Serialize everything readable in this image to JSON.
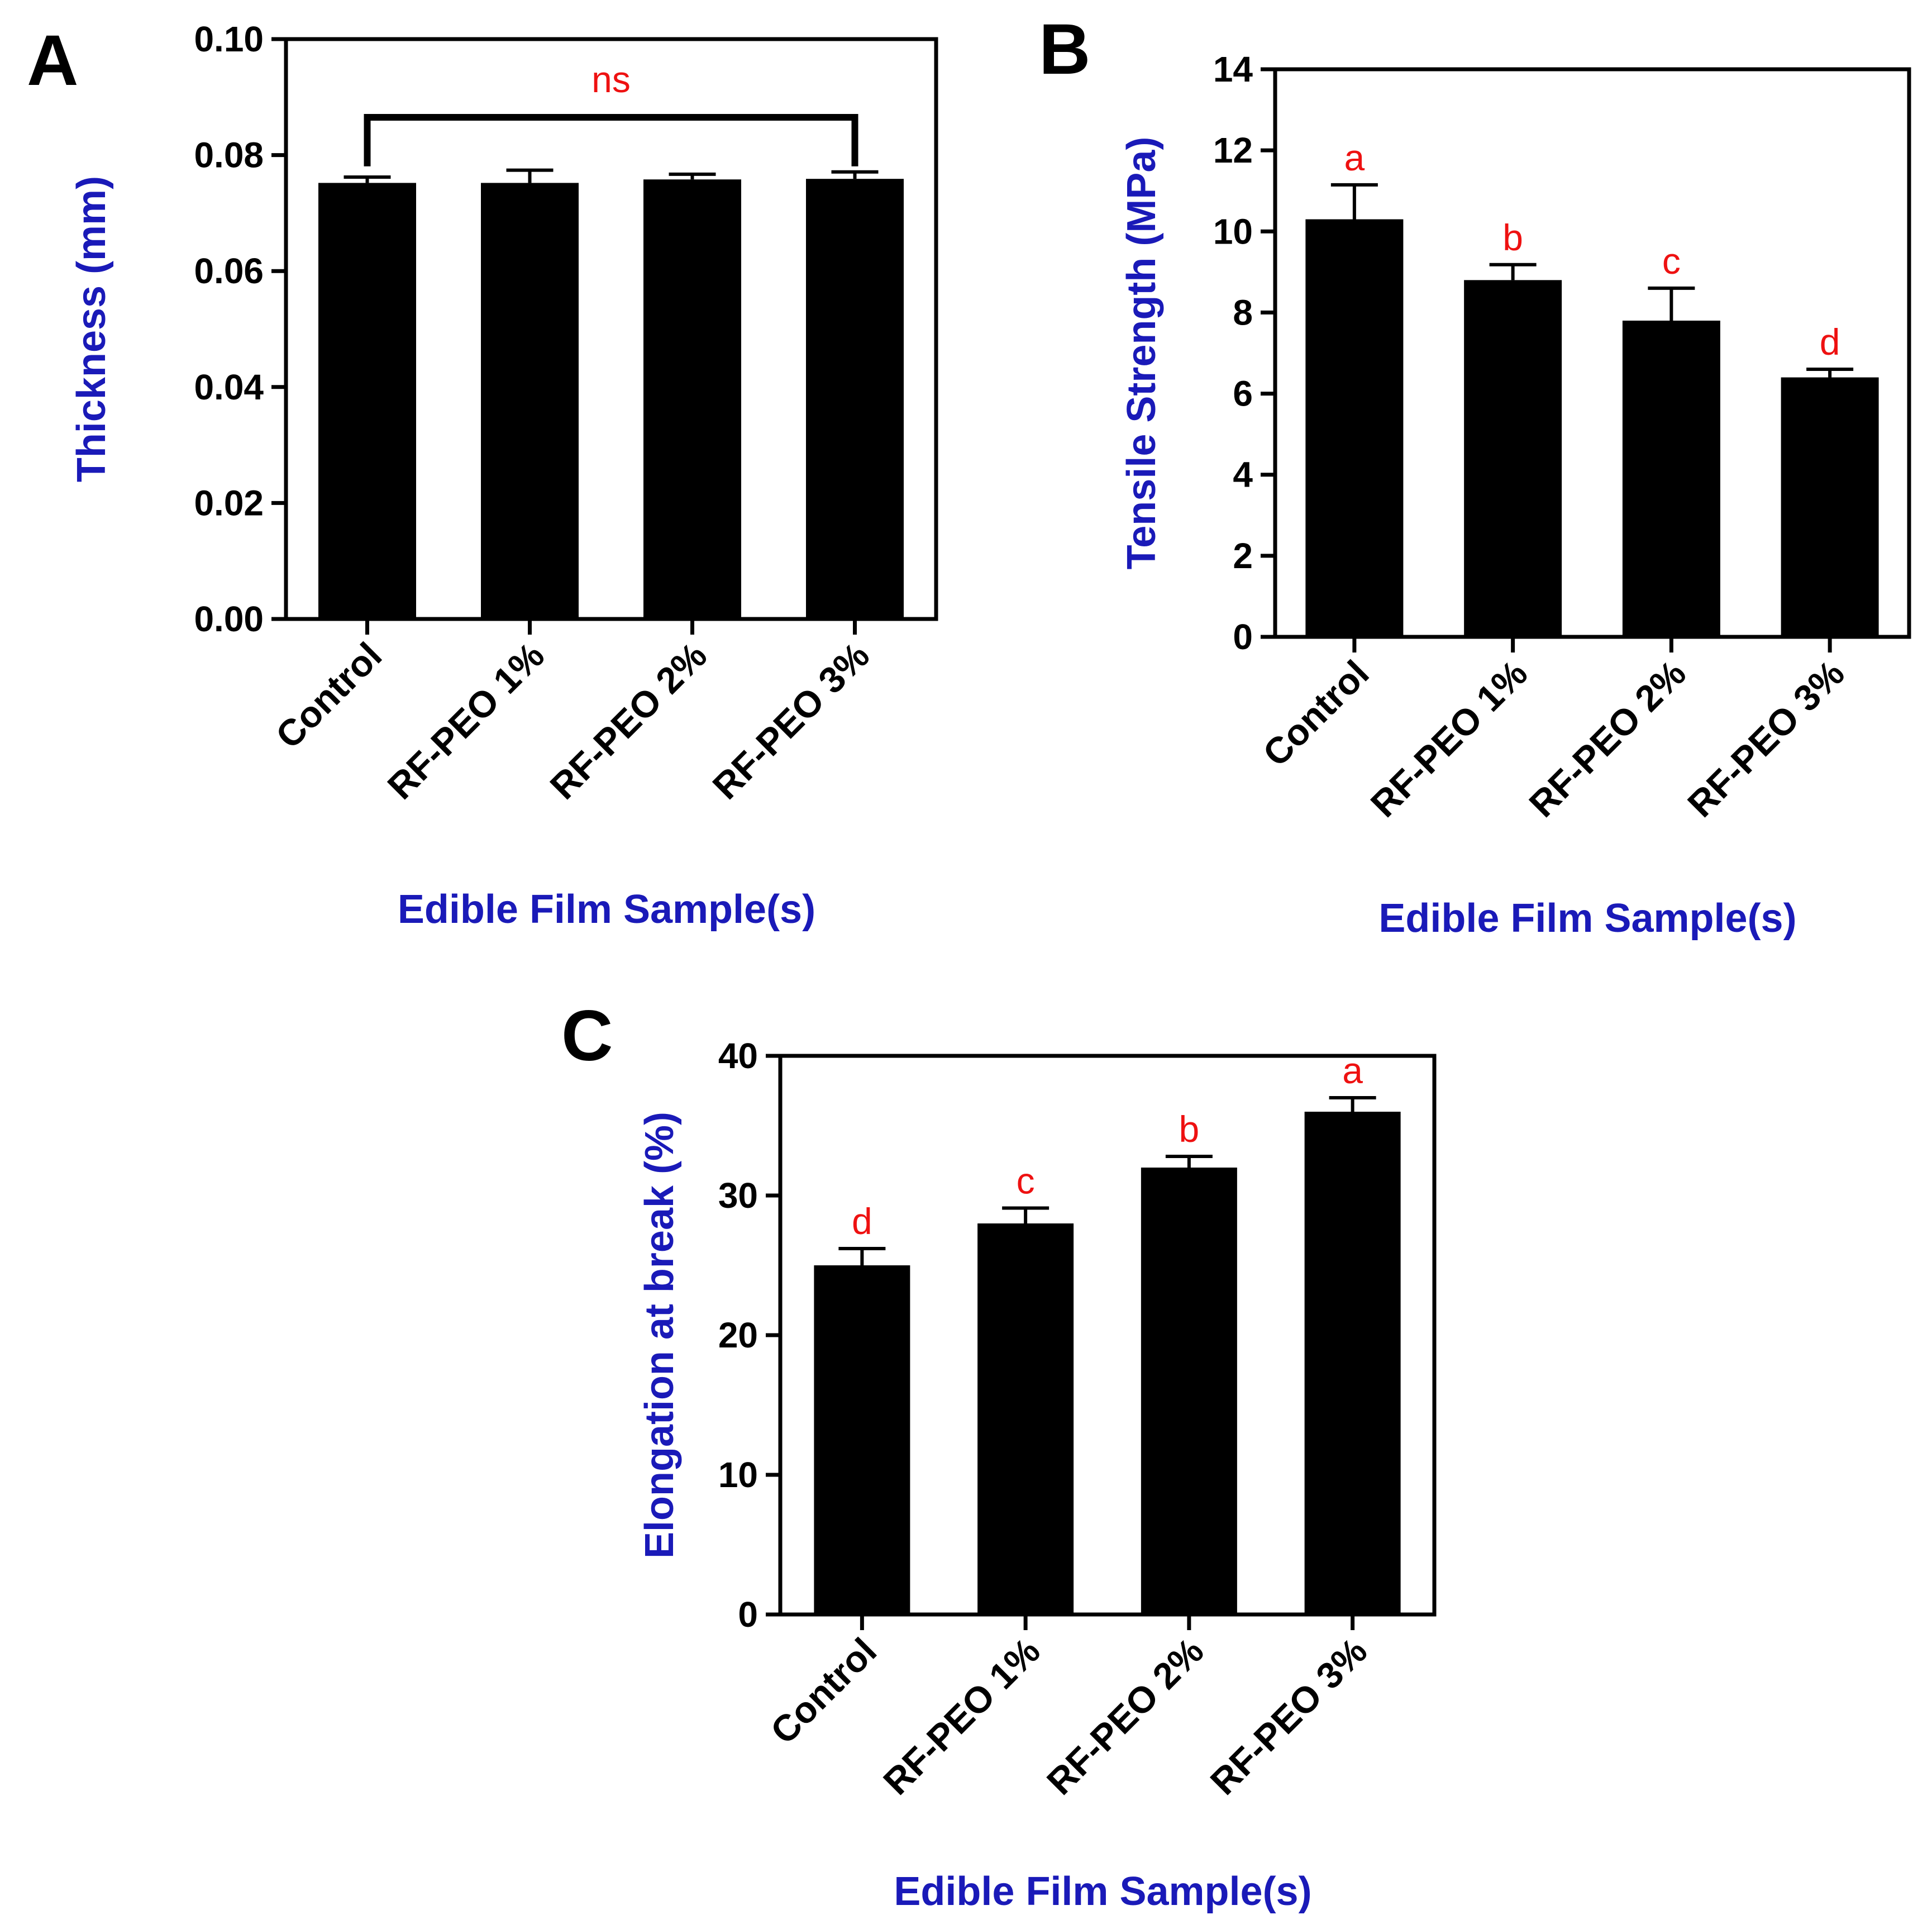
{
  "figure": {
    "colors": {
      "bar": "#000000",
      "axis_title": "#1a1ab8",
      "annotation": "#ee1111"
    }
  },
  "chart_data": [
    {
      "panel": "A",
      "type": "bar",
      "categories": [
        "Control",
        "RF-PEO 1%",
        "RF-PEO 2%",
        "RF-PEO 3%"
      ],
      "values": [
        0.0752,
        0.0752,
        0.0758,
        0.0759
      ],
      "errors": [
        0.001,
        0.0022,
        0.0009,
        0.0012
      ],
      "ylim": [
        0,
        0.1
      ],
      "yticks": [
        "0.00",
        "0.02",
        "0.04",
        "0.06",
        "0.08",
        "0.10"
      ],
      "ylabel": "Thickness (mm)",
      "xlabel": "Edible Film Sample(s)",
      "annotations": [],
      "bracket": {
        "from": 0,
        "to": 3,
        "label": "ns"
      }
    },
    {
      "panel": "B",
      "type": "bar",
      "categories": [
        "Control",
        "RF-PEO 1%",
        "RF-PEO 2%",
        "RF-PEO 3%"
      ],
      "values": [
        10.3,
        8.8,
        7.8,
        6.4
      ],
      "errors": [
        0.85,
        0.38,
        0.8,
        0.2
      ],
      "ylim": [
        0,
        14
      ],
      "yticks": [
        "0",
        "2",
        "4",
        "6",
        "8",
        "10",
        "12",
        "14"
      ],
      "ylabel": "Tensile Strength (MPa)",
      "xlabel": "Edible Film Sample(s)",
      "annotations": [
        "a",
        "b",
        "c",
        "d"
      ]
    },
    {
      "panel": "C",
      "type": "bar",
      "categories": [
        "Control",
        "RF-PEO 1%",
        "RF-PEO 2%",
        "RF-PEO 3%"
      ],
      "values": [
        25.0,
        28.0,
        32.0,
        36.0
      ],
      "errors": [
        1.2,
        1.1,
        0.8,
        1.0
      ],
      "ylim": [
        0,
        40
      ],
      "yticks": [
        "0",
        "10",
        "20",
        "30",
        "40"
      ],
      "ylabel": "Elongation at break (%)",
      "xlabel": "Edible Film Sample(s)",
      "annotations": [
        "d",
        "c",
        "b",
        "a"
      ]
    }
  ]
}
